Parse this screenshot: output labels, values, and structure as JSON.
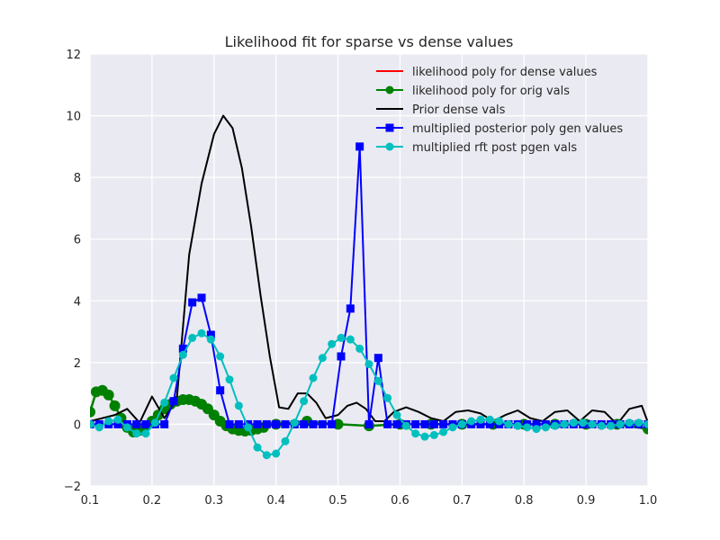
{
  "chart_data": {
    "type": "line",
    "title": "Likelihood fit for sparse vs dense values",
    "xlabel": "",
    "ylabel": "",
    "xlim": [
      0.1,
      1.0
    ],
    "ylim": [
      -2,
      12
    ],
    "grid": true,
    "legend_position": "top-right",
    "x_ticks": [
      0.1,
      0.2,
      0.3,
      0.4,
      0.5,
      0.6,
      0.7,
      0.8,
      0.9,
      1.0
    ],
    "x_tick_labels": [
      "0.1",
      "0.2",
      "0.3",
      "0.4",
      "0.5",
      "0.6",
      "0.7",
      "0.8",
      "0.9",
      "1.0"
    ],
    "y_ticks": [
      -2,
      0,
      2,
      4,
      6,
      8,
      10,
      12
    ],
    "y_tick_labels": [
      "−2",
      "0",
      "2",
      "4",
      "6",
      "8",
      "10",
      "12"
    ],
    "series": [
      {
        "name": "likelihood poly for dense values",
        "color": "#ff0000",
        "marker": "none",
        "x": [
          0.1,
          0.11,
          0.12,
          0.13,
          0.14,
          0.15,
          0.16,
          0.17,
          0.18,
          0.19,
          0.2,
          0.21,
          0.22,
          0.23,
          0.24,
          0.25,
          0.26,
          0.27,
          0.28,
          0.29,
          0.3,
          0.31,
          0.32,
          0.33,
          0.34,
          0.35,
          0.36,
          0.37,
          0.38,
          0.4,
          0.45,
          0.5,
          0.55,
          0.6,
          0.65,
          0.7,
          0.75,
          0.8,
          0.85,
          0.9,
          0.95,
          1.0
        ],
        "y": [
          0.4,
          1.05,
          1.1,
          0.95,
          0.6,
          0.2,
          -0.1,
          -0.25,
          -0.2,
          -0.05,
          0.1,
          0.3,
          0.5,
          0.65,
          0.75,
          0.8,
          0.8,
          0.75,
          0.65,
          0.5,
          0.3,
          0.1,
          -0.05,
          -0.15,
          -0.2,
          -0.22,
          -0.2,
          -0.15,
          -0.1,
          0.0,
          0.1,
          0.0,
          -0.05,
          0.0,
          0.0,
          0.0,
          0.0,
          0.0,
          0.0,
          0.0,
          0.0,
          -0.15
        ]
      },
      {
        "name": "likelihood poly for orig vals",
        "color": "#008000",
        "marker": "circle",
        "x": [
          0.1,
          0.11,
          0.12,
          0.13,
          0.14,
          0.15,
          0.16,
          0.17,
          0.18,
          0.19,
          0.2,
          0.21,
          0.22,
          0.23,
          0.24,
          0.25,
          0.26,
          0.27,
          0.28,
          0.29,
          0.3,
          0.31,
          0.32,
          0.33,
          0.34,
          0.35,
          0.36,
          0.37,
          0.38,
          0.4,
          0.45,
          0.5,
          0.55,
          0.6,
          0.65,
          0.7,
          0.75,
          0.8,
          0.85,
          0.9,
          0.95,
          1.0
        ],
        "y": [
          0.4,
          1.05,
          1.1,
          0.95,
          0.6,
          0.2,
          -0.1,
          -0.25,
          -0.2,
          -0.05,
          0.1,
          0.3,
          0.5,
          0.65,
          0.75,
          0.8,
          0.8,
          0.75,
          0.65,
          0.5,
          0.3,
          0.1,
          -0.05,
          -0.15,
          -0.2,
          -0.22,
          -0.2,
          -0.15,
          -0.1,
          0.0,
          0.1,
          0.0,
          -0.05,
          0.0,
          0.0,
          0.0,
          0.0,
          0.0,
          0.0,
          0.0,
          0.0,
          -0.15
        ]
      },
      {
        "name": "Prior dense vals",
        "color": "#000000",
        "marker": "none",
        "x": [
          0.1,
          0.12,
          0.14,
          0.16,
          0.18,
          0.2,
          0.22,
          0.24,
          0.26,
          0.28,
          0.3,
          0.315,
          0.33,
          0.345,
          0.36,
          0.375,
          0.39,
          0.405,
          0.42,
          0.435,
          0.45,
          0.465,
          0.48,
          0.5,
          0.515,
          0.53,
          0.545,
          0.56,
          0.575,
          0.59,
          0.61,
          0.63,
          0.65,
          0.67,
          0.69,
          0.71,
          0.73,
          0.75,
          0.77,
          0.79,
          0.81,
          0.83,
          0.85,
          0.87,
          0.89,
          0.91,
          0.93,
          0.95,
          0.97,
          0.99,
          1.0
        ],
        "y": [
          0.1,
          0.2,
          0.3,
          0.5,
          0.05,
          0.9,
          0.2,
          0.8,
          5.5,
          7.8,
          9.4,
          10.0,
          9.6,
          8.3,
          6.4,
          4.2,
          2.2,
          0.55,
          0.5,
          1.0,
          1.0,
          0.7,
          0.2,
          0.3,
          0.6,
          0.7,
          0.5,
          0.1,
          0.1,
          0.4,
          0.55,
          0.4,
          0.2,
          0.1,
          0.4,
          0.45,
          0.35,
          0.1,
          0.3,
          0.45,
          0.2,
          0.1,
          0.4,
          0.45,
          0.1,
          0.45,
          0.4,
          0.0,
          0.5,
          0.6,
          0.05
        ]
      },
      {
        "name": "multiplied posterior poly gen values",
        "color": "#0000ff",
        "marker": "square",
        "x": [
          0.1,
          0.115,
          0.13,
          0.145,
          0.16,
          0.175,
          0.19,
          0.205,
          0.22,
          0.235,
          0.25,
          0.265,
          0.28,
          0.295,
          0.31,
          0.325,
          0.34,
          0.355,
          0.37,
          0.385,
          0.4,
          0.415,
          0.43,
          0.445,
          0.46,
          0.475,
          0.49,
          0.505,
          0.52,
          0.535,
          0.55,
          0.565,
          0.58,
          0.595,
          0.61,
          0.625,
          0.64,
          0.655,
          0.67,
          0.685,
          0.7,
          0.715,
          0.73,
          0.745,
          0.76,
          0.775,
          0.79,
          0.805,
          0.82,
          0.835,
          0.85,
          0.865,
          0.88,
          0.895,
          0.91,
          0.925,
          0.94,
          0.955,
          0.97,
          0.985,
          1.0
        ],
        "y": [
          0.0,
          0.0,
          0.0,
          0.0,
          0.0,
          0.0,
          0.0,
          0.0,
          0.0,
          0.75,
          2.45,
          3.95,
          4.1,
          2.9,
          1.1,
          0.0,
          0.0,
          0.0,
          0.0,
          0.0,
          0.0,
          0.0,
          0.0,
          0.0,
          0.0,
          0.0,
          0.0,
          2.2,
          3.75,
          9.0,
          0.0,
          2.15,
          0.0,
          0.0,
          0.0,
          0.0,
          0.0,
          0.0,
          0.0,
          0.0,
          0.0,
          0.0,
          0.0,
          0.0,
          0.0,
          0.0,
          0.0,
          0.0,
          0.0,
          0.0,
          0.0,
          0.0,
          0.0,
          0.0,
          0.0,
          0.0,
          0.0,
          0.0,
          0.0,
          0.0,
          0.0
        ]
      },
      {
        "name": "multiplied rft post pgen vals",
        "color": "#00bfbf",
        "marker": "circle",
        "x": [
          0.1,
          0.115,
          0.13,
          0.145,
          0.16,
          0.175,
          0.19,
          0.205,
          0.22,
          0.235,
          0.25,
          0.265,
          0.28,
          0.295,
          0.31,
          0.325,
          0.34,
          0.355,
          0.37,
          0.385,
          0.4,
          0.415,
          0.43,
          0.445,
          0.46,
          0.475,
          0.49,
          0.505,
          0.52,
          0.535,
          0.55,
          0.565,
          0.58,
          0.595,
          0.61,
          0.625,
          0.64,
          0.655,
          0.67,
          0.685,
          0.7,
          0.715,
          0.73,
          0.745,
          0.76,
          0.775,
          0.79,
          0.805,
          0.82,
          0.835,
          0.85,
          0.865,
          0.88,
          0.895,
          0.91,
          0.925,
          0.94,
          0.955,
          0.97,
          0.985,
          1.0
        ],
        "y": [
          0.0,
          -0.1,
          0.1,
          0.15,
          -0.1,
          -0.3,
          -0.3,
          0.05,
          0.7,
          1.5,
          2.25,
          2.8,
          2.95,
          2.75,
          2.2,
          1.45,
          0.6,
          -0.1,
          -0.75,
          -1.0,
          -0.95,
          -0.55,
          0.05,
          0.75,
          1.5,
          2.15,
          2.6,
          2.8,
          2.75,
          2.45,
          1.95,
          1.4,
          0.85,
          0.3,
          -0.05,
          -0.3,
          -0.4,
          -0.35,
          -0.25,
          -0.1,
          0.0,
          0.1,
          0.15,
          0.15,
          0.1,
          0.0,
          -0.05,
          -0.1,
          -0.15,
          -0.1,
          -0.05,
          0.0,
          0.05,
          0.05,
          0.0,
          -0.05,
          -0.05,
          0.0,
          0.05,
          0.05,
          0.0
        ]
      }
    ]
  }
}
